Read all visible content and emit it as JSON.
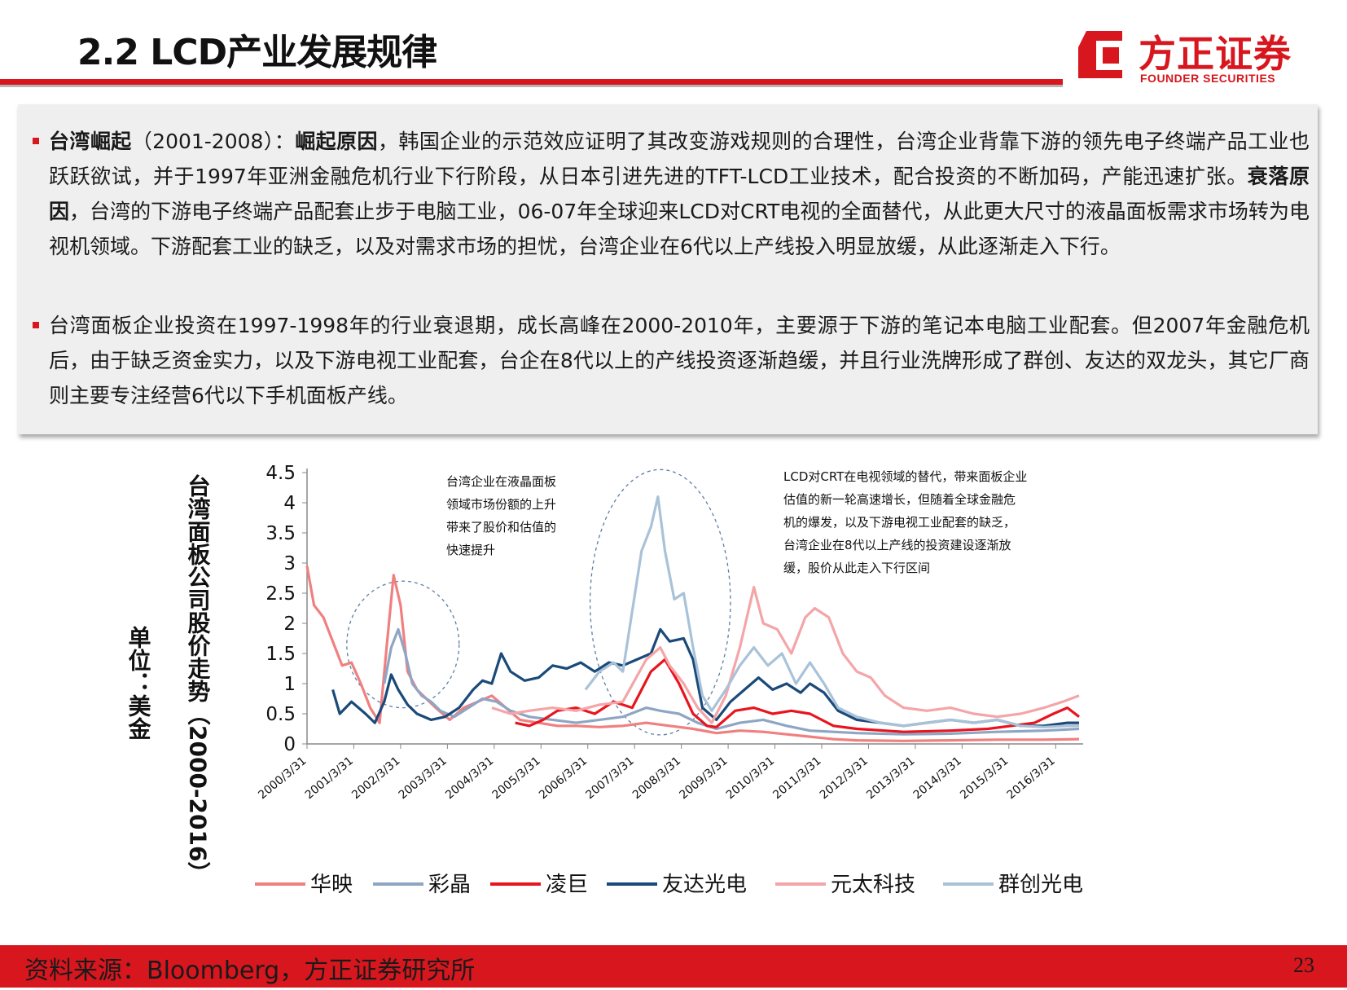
{
  "header": {
    "title": "2.2 LCD产业发展规律",
    "logo_cn": "方正证券",
    "logo_en": "FOUNDER SECURITIES"
  },
  "text": {
    "p1_lead": "台湾崛起",
    "p1_period": "（2001-2008）：",
    "p1_rise_label": "崛起原因",
    "p1_rise_text": "，韩国企业的示范效应证明了其改变游戏规则的合理性，台湾企业背靠下游的领先电子终端产品工业也跃跃欲试，并于1997年亚洲金融危机行业下行阶段，从日本引进先进的TFT-LCD工业技术，配合投资的不断加码，产能迅速扩张。",
    "p1_fall_label": "衰落原因",
    "p1_fall_text": "，台湾的下游电子终端产品配套止步于电脑工业，06-07年全球迎来LCD对CRT电视的全面替代，从此更大尺寸的液晶面板需求市场转为电视机领域。下游配套工业的缺乏，以及对需求市场的担忧，台湾企业在6代以上产线投入明显放缓，从此逐渐走入下行。",
    "p2": "台湾面板企业投资在1997-1998年的行业衰退期，成长高峰在2000-2010年，主要源于下游的笔记本电脑工业配套。但2007年金融危机后，由于缺乏资金实力，以及下游电视工业配套，台企在8代以上的产线投资逐渐趋缓，并且行业洗牌形成了群创、友达的双龙头，其它厂商则主要专注经营6代以下手机面板产线。"
  },
  "footer": {
    "source": "资料来源：Bloomberg，方正证券研究所",
    "page": "23"
  },
  "chart_data": {
    "type": "line",
    "title": "",
    "ylabel": "台湾面板公司股价走势（2000-2016）",
    "unit_label": "单位：美金",
    "ylim": [
      0,
      4.5
    ],
    "yticks": [
      0,
      0.5,
      1,
      1.5,
      2,
      2.5,
      3,
      3.5,
      4,
      4.5
    ],
    "x_ticks": [
      "2000/3/31",
      "2001/3/31",
      "2002/3/31",
      "2003/3/31",
      "2004/3/31",
      "2005/3/31",
      "2006/3/31",
      "2007/3/31",
      "2008/3/31",
      "2009/3/31",
      "2010/3/31",
      "2011/3/31",
      "2012/3/31",
      "2013/3/31",
      "2014/3/31",
      "2015/3/31",
      "2016/3/31"
    ],
    "x_range": [
      2000.25,
      2016.75
    ],
    "legend_position": "bottom",
    "grid": false,
    "annotations": [
      {
        "text_lines": [
          "台湾企业在液晶面板",
          "领域市场份额的上升",
          "带来了股价和估值的",
          "快速提升"
        ]
      },
      {
        "text_lines": [
          "LCD对CRT在电视领域的替代，带来面板企业",
          "估值的新一轮高速增长，但随着全球金融危",
          "机的爆发，以及下游电视工业配套的缺乏，",
          "台湾企业在8代以上产线的投资建设逐渐放",
          "缓，股价从此走入下行区间"
        ]
      }
    ],
    "series": [
      {
        "name": "华映",
        "color": "#f08080",
        "points": [
          [
            2000.25,
            2.95
          ],
          [
            2000.4,
            2.3
          ],
          [
            2000.6,
            2.1
          ],
          [
            2000.8,
            1.7
          ],
          [
            2001.0,
            1.3
          ],
          [
            2001.2,
            1.35
          ],
          [
            2001.4,
            1.0
          ],
          [
            2001.6,
            0.6
          ],
          [
            2001.8,
            0.35
          ],
          [
            2001.95,
            1.6
          ],
          [
            2002.1,
            2.8
          ],
          [
            2002.25,
            2.3
          ],
          [
            2002.4,
            1.2
          ],
          [
            2002.6,
            0.9
          ],
          [
            2002.8,
            0.75
          ],
          [
            2003.0,
            0.6
          ],
          [
            2003.3,
            0.4
          ],
          [
            2003.6,
            0.6
          ],
          [
            2003.9,
            0.7
          ],
          [
            2004.2,
            0.8
          ],
          [
            2004.5,
            0.6
          ],
          [
            2004.8,
            0.4
          ],
          [
            2005.2,
            0.35
          ],
          [
            2005.6,
            0.3
          ],
          [
            2006.0,
            0.3
          ],
          [
            2006.5,
            0.28
          ],
          [
            2007.0,
            0.3
          ],
          [
            2007.5,
            0.35
          ],
          [
            2008.0,
            0.3
          ],
          [
            2008.5,
            0.25
          ],
          [
            2009.0,
            0.18
          ],
          [
            2009.5,
            0.22
          ],
          [
            2010.0,
            0.2
          ],
          [
            2010.5,
            0.16
          ],
          [
            2011.0,
            0.12
          ],
          [
            2011.5,
            0.08
          ],
          [
            2012.0,
            0.06
          ],
          [
            2013.0,
            0.05
          ],
          [
            2014.0,
            0.06
          ],
          [
            2015.0,
            0.07
          ],
          [
            2016.0,
            0.07
          ],
          [
            2016.75,
            0.08
          ]
        ]
      },
      {
        "name": "彩晶",
        "color": "#8ea6c4",
        "points": [
          [
            2001.9,
            1.0
          ],
          [
            2002.05,
            1.6
          ],
          [
            2002.2,
            1.9
          ],
          [
            2002.35,
            1.5
          ],
          [
            2002.5,
            1.0
          ],
          [
            2002.7,
            0.8
          ],
          [
            2002.9,
            0.7
          ],
          [
            2003.1,
            0.55
          ],
          [
            2003.4,
            0.45
          ],
          [
            2003.7,
            0.6
          ],
          [
            2004.0,
            0.75
          ],
          [
            2004.3,
            0.7
          ],
          [
            2004.6,
            0.55
          ],
          [
            2005.0,
            0.45
          ],
          [
            2005.5,
            0.4
          ],
          [
            2006.0,
            0.35
          ],
          [
            2006.5,
            0.4
          ],
          [
            2007.0,
            0.45
          ],
          [
            2007.5,
            0.6
          ],
          [
            2007.8,
            0.55
          ],
          [
            2008.2,
            0.5
          ],
          [
            2008.6,
            0.35
          ],
          [
            2009.0,
            0.25
          ],
          [
            2009.5,
            0.35
          ],
          [
            2010.0,
            0.4
          ],
          [
            2010.5,
            0.3
          ],
          [
            2011.0,
            0.22
          ],
          [
            2011.5,
            0.2
          ],
          [
            2012.0,
            0.18
          ],
          [
            2013.0,
            0.16
          ],
          [
            2014.0,
            0.17
          ],
          [
            2015.0,
            0.2
          ],
          [
            2016.0,
            0.22
          ],
          [
            2016.75,
            0.25
          ]
        ]
      },
      {
        "name": "凌巨",
        "color": "#e8141e",
        "points": [
          [
            2004.7,
            0.35
          ],
          [
            2005.0,
            0.3
          ],
          [
            2005.3,
            0.4
          ],
          [
            2005.6,
            0.55
          ],
          [
            2006.0,
            0.6
          ],
          [
            2006.4,
            0.5
          ],
          [
            2006.8,
            0.7
          ],
          [
            2007.2,
            0.6
          ],
          [
            2007.6,
            1.2
          ],
          [
            2007.9,
            1.4
          ],
          [
            2008.2,
            1.0
          ],
          [
            2008.5,
            0.5
          ],
          [
            2008.8,
            0.3
          ],
          [
            2009.0,
            0.28
          ],
          [
            2009.4,
            0.55
          ],
          [
            2009.8,
            0.6
          ],
          [
            2010.2,
            0.5
          ],
          [
            2010.6,
            0.55
          ],
          [
            2011.0,
            0.5
          ],
          [
            2011.5,
            0.3
          ],
          [
            2012.0,
            0.25
          ],
          [
            2013.0,
            0.2
          ],
          [
            2014.0,
            0.22
          ],
          [
            2014.8,
            0.25
          ],
          [
            2015.3,
            0.3
          ],
          [
            2015.8,
            0.35
          ],
          [
            2016.2,
            0.5
          ],
          [
            2016.5,
            0.6
          ],
          [
            2016.75,
            0.45
          ]
        ]
      },
      {
        "name": "友达光电",
        "color": "#1a4a7a",
        "points": [
          [
            2000.8,
            0.9
          ],
          [
            2000.95,
            0.5
          ],
          [
            2001.2,
            0.7
          ],
          [
            2001.5,
            0.5
          ],
          [
            2001.7,
            0.35
          ],
          [
            2001.9,
            0.7
          ],
          [
            2002.05,
            1.15
          ],
          [
            2002.2,
            0.9
          ],
          [
            2002.4,
            0.65
          ],
          [
            2002.6,
            0.5
          ],
          [
            2002.9,
            0.4
          ],
          [
            2003.2,
            0.45
          ],
          [
            2003.5,
            0.6
          ],
          [
            2003.8,
            0.9
          ],
          [
            2004.0,
            1.05
          ],
          [
            2004.2,
            1.0
          ],
          [
            2004.4,
            1.5
          ],
          [
            2004.6,
            1.2
          ],
          [
            2004.9,
            1.05
          ],
          [
            2005.2,
            1.1
          ],
          [
            2005.5,
            1.3
          ],
          [
            2005.8,
            1.25
          ],
          [
            2006.1,
            1.35
          ],
          [
            2006.4,
            1.2
          ],
          [
            2006.7,
            1.35
          ],
          [
            2007.0,
            1.3
          ],
          [
            2007.3,
            1.4
          ],
          [
            2007.6,
            1.5
          ],
          [
            2007.8,
            1.9
          ],
          [
            2008.0,
            1.7
          ],
          [
            2008.3,
            1.75
          ],
          [
            2008.5,
            1.4
          ],
          [
            2008.7,
            0.6
          ],
          [
            2009.0,
            0.4
          ],
          [
            2009.3,
            0.7
          ],
          [
            2009.6,
            0.9
          ],
          [
            2009.9,
            1.1
          ],
          [
            2010.2,
            0.9
          ],
          [
            2010.5,
            1.0
          ],
          [
            2010.8,
            0.85
          ],
          [
            2011.0,
            1.0
          ],
          [
            2011.3,
            0.85
          ],
          [
            2011.6,
            0.55
          ],
          [
            2012.0,
            0.4
          ],
          [
            2012.5,
            0.35
          ],
          [
            2013.0,
            0.3
          ],
          [
            2013.5,
            0.35
          ],
          [
            2014.0,
            0.4
          ],
          [
            2014.5,
            0.35
          ],
          [
            2015.0,
            0.4
          ],
          [
            2015.5,
            0.3
          ],
          [
            2016.0,
            0.3
          ],
          [
            2016.5,
            0.35
          ],
          [
            2016.75,
            0.35
          ]
        ]
      },
      {
        "name": "元太科技",
        "color": "#f4a5a8",
        "points": [
          [
            2004.2,
            0.6
          ],
          [
            2004.6,
            0.5
          ],
          [
            2005.0,
            0.55
          ],
          [
            2005.5,
            0.6
          ],
          [
            2006.0,
            0.55
          ],
          [
            2006.5,
            0.65
          ],
          [
            2007.0,
            0.7
          ],
          [
            2007.5,
            1.4
          ],
          [
            2007.8,
            1.6
          ],
          [
            2008.0,
            1.3
          ],
          [
            2008.3,
            1.0
          ],
          [
            2008.6,
            0.6
          ],
          [
            2008.9,
            0.35
          ],
          [
            2009.2,
            0.8
          ],
          [
            2009.5,
            1.6
          ],
          [
            2009.8,
            2.6
          ],
          [
            2010.0,
            2.0
          ],
          [
            2010.3,
            1.9
          ],
          [
            2010.6,
            1.5
          ],
          [
            2010.9,
            2.1
          ],
          [
            2011.1,
            2.25
          ],
          [
            2011.4,
            2.1
          ],
          [
            2011.7,
            1.5
          ],
          [
            2012.0,
            1.2
          ],
          [
            2012.3,
            1.1
          ],
          [
            2012.6,
            0.8
          ],
          [
            2013.0,
            0.6
          ],
          [
            2013.5,
            0.55
          ],
          [
            2014.0,
            0.6
          ],
          [
            2014.5,
            0.5
          ],
          [
            2015.0,
            0.45
          ],
          [
            2015.5,
            0.5
          ],
          [
            2016.0,
            0.6
          ],
          [
            2016.4,
            0.7
          ],
          [
            2016.75,
            0.8
          ]
        ]
      },
      {
        "name": "群创光电",
        "color": "#a9c2d8",
        "points": [
          [
            2006.2,
            0.9
          ],
          [
            2006.5,
            1.2
          ],
          [
            2006.8,
            1.35
          ],
          [
            2007.0,
            1.2
          ],
          [
            2007.2,
            2.2
          ],
          [
            2007.4,
            3.2
          ],
          [
            2007.6,
            3.6
          ],
          [
            2007.75,
            4.1
          ],
          [
            2007.9,
            3.2
          ],
          [
            2008.1,
            2.4
          ],
          [
            2008.3,
            2.5
          ],
          [
            2008.5,
            1.6
          ],
          [
            2008.7,
            0.8
          ],
          [
            2008.9,
            0.55
          ],
          [
            2009.2,
            0.9
          ],
          [
            2009.5,
            1.3
          ],
          [
            2009.8,
            1.6
          ],
          [
            2010.1,
            1.3
          ],
          [
            2010.4,
            1.5
          ],
          [
            2010.7,
            1.0
          ],
          [
            2011.0,
            1.35
          ],
          [
            2011.3,
            1.0
          ],
          [
            2011.6,
            0.6
          ],
          [
            2012.0,
            0.45
          ],
          [
            2012.5,
            0.35
          ],
          [
            2013.0,
            0.3
          ],
          [
            2013.5,
            0.35
          ],
          [
            2014.0,
            0.4
          ],
          [
            2014.5,
            0.35
          ],
          [
            2015.0,
            0.4
          ],
          [
            2015.5,
            0.3
          ],
          [
            2016.0,
            0.28
          ],
          [
            2016.5,
            0.3
          ],
          [
            2016.75,
            0.3
          ]
        ]
      }
    ]
  }
}
